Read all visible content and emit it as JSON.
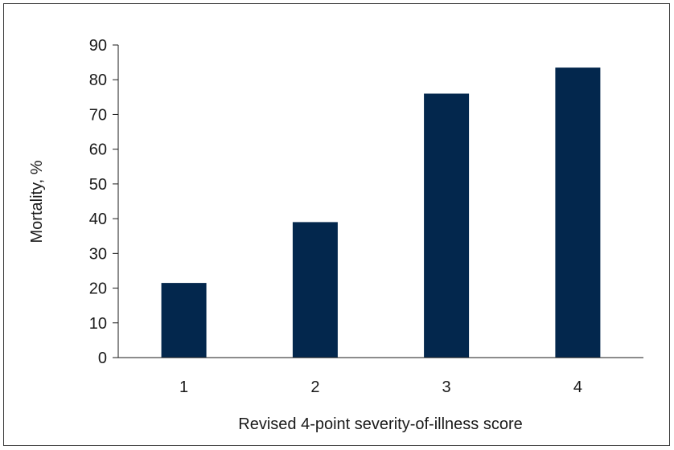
{
  "chart_data": {
    "type": "bar",
    "categories": [
      "1",
      "2",
      "3",
      "4"
    ],
    "values": [
      21.5,
      39,
      76,
      83.5
    ],
    "xlabel": "Revised 4-point severity-of-illness score",
    "ylabel": "Mortality, %",
    "ylim": [
      0,
      90
    ],
    "yticks": [
      0,
      10,
      20,
      30,
      40,
      50,
      60,
      70,
      80,
      90
    ],
    "grid": false,
    "legend": "none",
    "bar_color": "#03274d",
    "axis_color": "#1a1a1a"
  }
}
